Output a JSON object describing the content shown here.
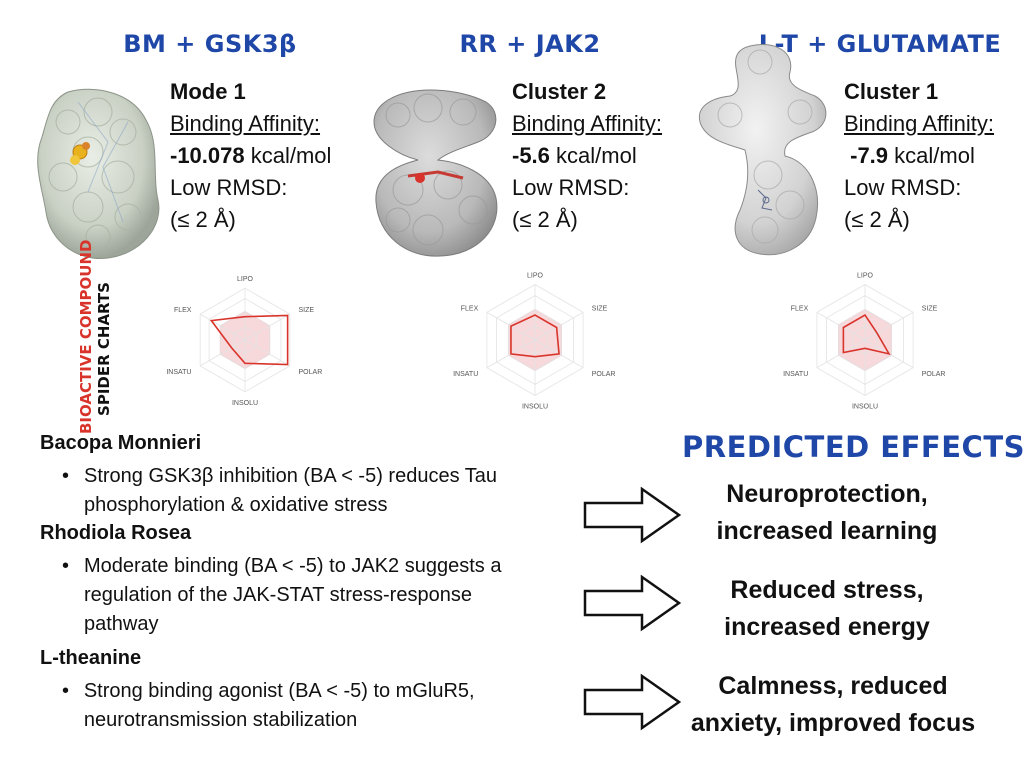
{
  "columns": [
    {
      "title": "BM + GSK3β",
      "mode": "Mode 1",
      "ba_label": "Binding Affinity:",
      "affinity_value": "-10.078",
      "affinity_unit": " kcal/mol",
      "rmsd_label": "Low RMSD:",
      "rmsd_value": "(≤ 2 Å)"
    },
    {
      "title": "RR + JAK2",
      "mode": "Cluster 2",
      "ba_label": "Binding Affinity:",
      "affinity_value": "-5.6",
      "affinity_unit": " kcal/mol",
      "rmsd_label": "Low RMSD:",
      "rmsd_value": "(≤ 2 Å)"
    },
    {
      "title": "L-T + GLUTAMATE",
      "mode": "Cluster 1",
      "ba_label": "Binding Affinity:",
      "affinity_value": "-7.9",
      "affinity_unit": " kcal/mol",
      "rmsd_label": "Low RMSD:",
      "rmsd_value": "(≤ 2 Å)"
    }
  ],
  "side_label": {
    "line1": "BIOACTIVE COMPOUND",
    "line2": "SPIDER CHARTS"
  },
  "spider_axes": [
    "LIPO",
    "SIZE",
    "POLAR",
    "INSOLU",
    "INSATU",
    "FLEX"
  ],
  "spider_values": [
    [
      0.45,
      0.95,
      0.95,
      0.45,
      0.3,
      0.75
    ],
    [
      0.45,
      0.45,
      0.5,
      0.3,
      0.5,
      0.5
    ],
    [
      0.45,
      0.25,
      0.5,
      0.15,
      0.45,
      0.45
    ]
  ],
  "compounds": [
    {
      "name": "Bacopa Monnieri",
      "bullet": "Strong GSK3β inhibition (BA < -5) reduces Tau phosphorylation & oxidative stress"
    },
    {
      "name": "Rhodiola Rosea",
      "bullet": "Moderate binding (BA < -5) to JAK2 suggests a regulation of the JAK-STAT stress-response pathway"
    },
    {
      "name": "L-theanine",
      "bullet": "Strong binding agonist (BA < -5) to mGluR5, neurotransmission stabilization"
    }
  ],
  "predicted_title": "PREDICTED EFFECTS",
  "effects": [
    {
      "line1": "Neuroprotection,",
      "line2": "increased learning"
    },
    {
      "line1": "Reduced stress,",
      "line2": "increased energy"
    },
    {
      "line1": "Calmness, reduced",
      "line2": "anxiety, improved focus"
    }
  ],
  "colors": {
    "title_blue": "#1f47a8",
    "accent_red": "#d9342b",
    "spider_fill": "#f7d9dc"
  }
}
